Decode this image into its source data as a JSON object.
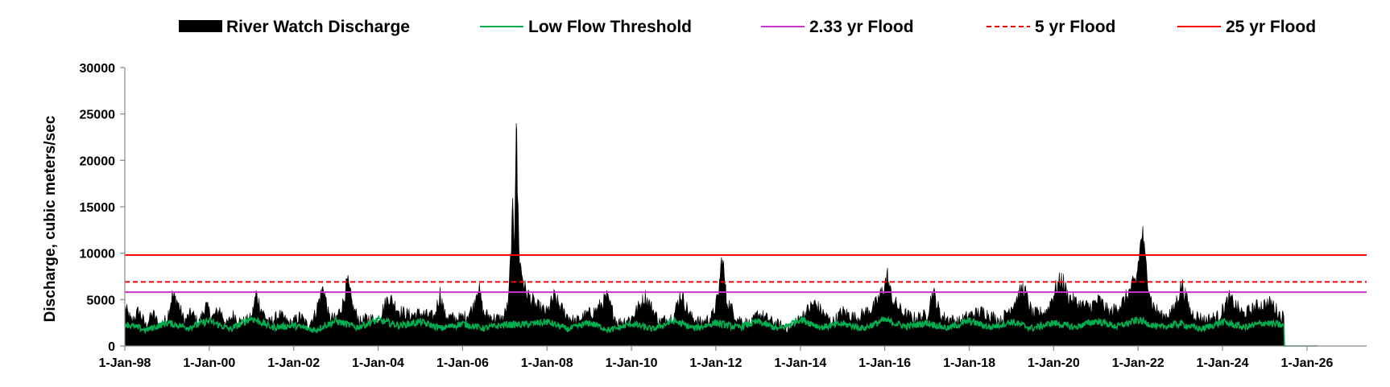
{
  "chart_data": {
    "type": "area",
    "title": "",
    "ylabel": "Discharge, cubic meters/sec",
    "xlabel": "",
    "ylim": [
      0,
      30000
    ],
    "yticks": [
      0,
      5000,
      10000,
      15000,
      20000,
      25000,
      30000
    ],
    "xlim": [
      "1998-01-01",
      "2027-06-01"
    ],
    "xticks": [
      {
        "date": "1998-01-01",
        "label": "1-Jan-98"
      },
      {
        "date": "2000-01-01",
        "label": "1-Jan-00"
      },
      {
        "date": "2002-01-01",
        "label": "1-Jan-02"
      },
      {
        "date": "2004-01-01",
        "label": "1-Jan-04"
      },
      {
        "date": "2006-01-01",
        "label": "1-Jan-06"
      },
      {
        "date": "2008-01-01",
        "label": "1-Jan-08"
      },
      {
        "date": "2010-01-01",
        "label": "1-Jan-10"
      },
      {
        "date": "2012-01-01",
        "label": "1-Jan-12"
      },
      {
        "date": "2014-01-01",
        "label": "1-Jan-14"
      },
      {
        "date": "2016-01-01",
        "label": "1-Jan-16"
      },
      {
        "date": "2018-01-01",
        "label": "1-Jan-18"
      },
      {
        "date": "2020-01-01",
        "label": "1-Jan-20"
      },
      {
        "date": "2022-01-01",
        "label": "1-Jan-22"
      },
      {
        "date": "2024-01-01",
        "label": "1-Jan-24"
      },
      {
        "date": "2026-01-01",
        "label": "1-Jan-26"
      }
    ],
    "grid": false,
    "legend_position": "top",
    "series": [
      {
        "name": "River Watch Discharge",
        "kind": "area",
        "color": "#000000",
        "points": [
          [
            "1998-01-01",
            4200
          ],
          [
            "1998-03-01",
            2600
          ],
          [
            "1998-05-01",
            3800
          ],
          [
            "1998-07-01",
            2200
          ],
          [
            "1998-09-01",
            3500
          ],
          [
            "1998-11-01",
            2100
          ],
          [
            "1999-01-01",
            3000
          ],
          [
            "1999-02-15",
            5400
          ],
          [
            "1999-04-01",
            4800
          ],
          [
            "1999-06-01",
            2600
          ],
          [
            "1999-08-01",
            3600
          ],
          [
            "1999-10-01",
            2400
          ],
          [
            "1999-12-01",
            4300
          ],
          [
            "2000-02-01",
            3100
          ],
          [
            "2000-04-01",
            3900
          ],
          [
            "2000-06-01",
            2300
          ],
          [
            "2000-08-01",
            3400
          ],
          [
            "2000-10-01",
            2500
          ],
          [
            "2001-01-01",
            3000
          ],
          [
            "2001-02-10",
            5600
          ],
          [
            "2001-04-01",
            3800
          ],
          [
            "2001-06-01",
            2500
          ],
          [
            "2001-09-01",
            3300
          ],
          [
            "2001-12-01",
            2400
          ],
          [
            "2002-03-01",
            3200
          ],
          [
            "2002-05-01",
            2200
          ],
          [
            "2002-07-01",
            3300
          ],
          [
            "2002-09-15",
            6400
          ],
          [
            "2002-11-01",
            3100
          ],
          [
            "2003-01-01",
            2900
          ],
          [
            "2003-03-01",
            4500
          ],
          [
            "2003-04-10",
            6900
          ],
          [
            "2003-06-01",
            4000
          ],
          [
            "2003-08-01",
            2600
          ],
          [
            "2003-10-01",
            3000
          ],
          [
            "2004-01-01",
            2800
          ],
          [
            "2004-04-01",
            5300
          ],
          [
            "2004-07-01",
            3800
          ],
          [
            "2004-10-01",
            3300
          ],
          [
            "2005-01-01",
            3500
          ],
          [
            "2005-05-01",
            3100
          ],
          [
            "2005-06-20",
            5700
          ],
          [
            "2005-08-01",
            3300
          ],
          [
            "2005-11-01",
            2900
          ],
          [
            "2006-02-01",
            3200
          ],
          [
            "2006-04-01",
            4100
          ],
          [
            "2006-05-15",
            6600
          ],
          [
            "2006-07-01",
            3500
          ],
          [
            "2006-10-01",
            3000
          ],
          [
            "2006-12-15",
            2900
          ],
          [
            "2007-02-01",
            4500
          ],
          [
            "2007-03-10",
            14000
          ],
          [
            "2007-03-25",
            11500
          ],
          [
            "2007-04-10",
            25000
          ],
          [
            "2007-04-20",
            17000
          ],
          [
            "2007-05-10",
            9000
          ],
          [
            "2007-07-01",
            5800
          ],
          [
            "2007-10-01",
            4300
          ],
          [
            "2008-01-01",
            3600
          ],
          [
            "2008-03-01",
            5300
          ],
          [
            "2008-06-01",
            3500
          ],
          [
            "2008-09-01",
            2600
          ],
          [
            "2008-12-01",
            3300
          ],
          [
            "2009-03-01",
            3800
          ],
          [
            "2009-06-01",
            5200
          ],
          [
            "2009-09-01",
            2500
          ],
          [
            "2010-01-01",
            3000
          ],
          [
            "2010-05-01",
            5300
          ],
          [
            "2010-09-01",
            2600
          ],
          [
            "2011-01-01",
            3200
          ],
          [
            "2011-03-01",
            5600
          ],
          [
            "2011-06-01",
            3100
          ],
          [
            "2011-09-01",
            2500
          ],
          [
            "2011-12-01",
            3200
          ],
          [
            "2012-01-20",
            5200
          ],
          [
            "2012-02-25",
            9800
          ],
          [
            "2012-04-01",
            5000
          ],
          [
            "2012-07-01",
            3000
          ],
          [
            "2012-11-01",
            2300
          ],
          [
            "2013-01-01",
            3500
          ],
          [
            "2013-05-01",
            2600
          ],
          [
            "2013-10-01",
            1800
          ],
          [
            "2014-01-01",
            3000
          ],
          [
            "2014-05-01",
            4600
          ],
          [
            "2014-10-01",
            2500
          ],
          [
            "2015-01-01",
            3700
          ],
          [
            "2015-05-01",
            3000
          ],
          [
            "2015-10-01",
            4200
          ],
          [
            "2015-12-01",
            5600
          ],
          [
            "2016-01-25",
            7500
          ],
          [
            "2016-03-01",
            5100
          ],
          [
            "2016-06-01",
            3600
          ],
          [
            "2016-09-01",
            3000
          ],
          [
            "2017-01-01",
            3300
          ],
          [
            "2017-02-20",
            5900
          ],
          [
            "2017-05-01",
            3200
          ],
          [
            "2017-10-01",
            2600
          ],
          [
            "2018-01-01",
            3300
          ],
          [
            "2018-05-01",
            3700
          ],
          [
            "2018-10-01",
            2700
          ],
          [
            "2019-03-01",
            5300
          ],
          [
            "2019-04-15",
            6300
          ],
          [
            "2019-07-01",
            3400
          ],
          [
            "2019-11-01",
            3700
          ],
          [
            "2020-02-01",
            6500
          ],
          [
            "2020-03-15",
            7200
          ],
          [
            "2020-05-01",
            5400
          ],
          [
            "2020-08-01",
            4500
          ],
          [
            "2020-11-01",
            4200
          ],
          [
            "2021-02-01",
            4900
          ],
          [
            "2021-05-01",
            3500
          ],
          [
            "2021-09-01",
            4800
          ],
          [
            "2021-12-15",
            7100
          ],
          [
            "2022-01-20",
            10600
          ],
          [
            "2022-02-05",
            12500
          ],
          [
            "2022-03-01",
            9300
          ],
          [
            "2022-05-01",
            4500
          ],
          [
            "2022-08-01",
            3100
          ],
          [
            "2022-11-01",
            3800
          ],
          [
            "2023-01-15",
            6600
          ],
          [
            "2023-04-01",
            3600
          ],
          [
            "2023-08-01",
            2800
          ],
          [
            "2023-12-01",
            3200
          ],
          [
            "2024-03-01",
            5100
          ],
          [
            "2024-07-01",
            3400
          ],
          [
            "2024-11-01",
            4300
          ],
          [
            "2025-03-01",
            4600
          ],
          [
            "2025-05-15",
            3300
          ],
          [
            "2025-06-15",
            3100
          ],
          [
            "2025-06-20",
            0
          ]
        ]
      },
      {
        "name": "Low Flow Threshold",
        "kind": "line",
        "color": "#00b050",
        "points": [
          [
            "1998-01-01",
            2400
          ],
          [
            "1998-07-01",
            1700
          ],
          [
            "1999-01-01",
            2500
          ],
          [
            "1999-07-01",
            2000
          ],
          [
            "2000-01-01",
            2700
          ],
          [
            "2000-07-01",
            1800
          ],
          [
            "2001-01-01",
            3000
          ],
          [
            "2001-07-01",
            2000
          ],
          [
            "2002-01-01",
            2200
          ],
          [
            "2002-07-01",
            1700
          ],
          [
            "2003-01-01",
            2700
          ],
          [
            "2003-07-01",
            2000
          ],
          [
            "2004-01-01",
            2800
          ],
          [
            "2004-07-01",
            2200
          ],
          [
            "2005-01-01",
            2600
          ],
          [
            "2005-07-01",
            1900
          ],
          [
            "2006-01-01",
            2400
          ],
          [
            "2006-07-01",
            1900
          ],
          [
            "2007-01-01",
            2300
          ],
          [
            "2007-07-01",
            2300
          ],
          [
            "2008-01-01",
            2600
          ],
          [
            "2008-07-01",
            1800
          ],
          [
            "2009-01-01",
            2500
          ],
          [
            "2009-07-01",
            1700
          ],
          [
            "2010-01-01",
            2400
          ],
          [
            "2010-07-01",
            1800
          ],
          [
            "2011-01-01",
            2700
          ],
          [
            "2011-07-01",
            1900
          ],
          [
            "2012-01-01",
            2500
          ],
          [
            "2012-07-01",
            2000
          ],
          [
            "2013-01-01",
            2600
          ],
          [
            "2013-07-01",
            1800
          ],
          [
            "2014-01-01",
            2900
          ],
          [
            "2014-07-01",
            2000
          ],
          [
            "2015-01-01",
            2400
          ],
          [
            "2015-07-01",
            1900
          ],
          [
            "2016-01-01",
            2800
          ],
          [
            "2016-07-01",
            2100
          ],
          [
            "2017-01-01",
            2500
          ],
          [
            "2017-07-01",
            1900
          ],
          [
            "2018-01-01",
            2700
          ],
          [
            "2018-07-01",
            2000
          ],
          [
            "2019-01-01",
            2600
          ],
          [
            "2019-07-01",
            1900
          ],
          [
            "2020-01-01",
            2500
          ],
          [
            "2020-07-01",
            2000
          ],
          [
            "2021-01-01",
            2700
          ],
          [
            "2021-07-01",
            2100
          ],
          [
            "2022-01-01",
            2800
          ],
          [
            "2022-07-01",
            2000
          ],
          [
            "2023-01-01",
            2400
          ],
          [
            "2023-07-01",
            1800
          ],
          [
            "2024-01-01",
            2600
          ],
          [
            "2024-07-01",
            2000
          ],
          [
            "2025-01-01",
            2500
          ],
          [
            "2025-06-15",
            2200
          ],
          [
            "2025-06-20",
            0
          ],
          [
            "2026-04-01",
            0
          ]
        ]
      },
      {
        "name": "2.33 yr Flood",
        "kind": "hline",
        "color": "#cc33cc",
        "value": 5800
      },
      {
        "name": "5 yr Flood",
        "kind": "hline",
        "color": "#ff0000",
        "dashed": true,
        "value": 6900
      },
      {
        "name": "25 yr Flood",
        "kind": "hline",
        "color": "#ff0000",
        "value": 9800
      }
    ]
  }
}
